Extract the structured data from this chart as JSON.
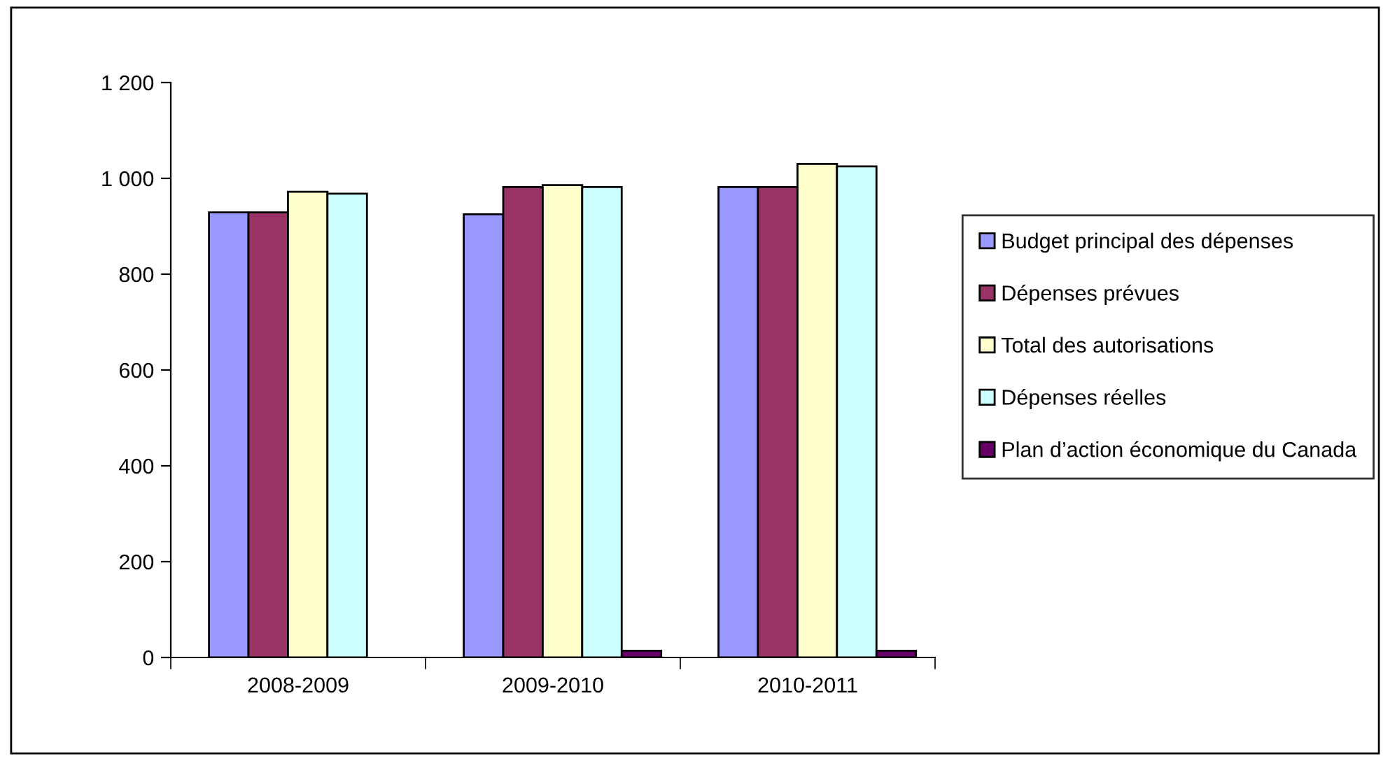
{
  "chart_data": {
    "type": "bar",
    "categories": [
      "2008-2009",
      "2009-2010",
      "2010-2011"
    ],
    "series": [
      {
        "name": "Budget principal des dépenses",
        "color": "#9999ff",
        "values": [
          929,
          925,
          982
        ]
      },
      {
        "name": "Dépenses prévues",
        "color": "#993366",
        "values": [
          929,
          982,
          982
        ]
      },
      {
        "name": "Total des autorisations",
        "color": "#ffffcc",
        "values": [
          972,
          986,
          1030
        ]
      },
      {
        "name": "Dépenses réelles",
        "color": "#ccffff",
        "values": [
          968,
          982,
          1025
        ]
      },
      {
        "name": "Plan d’action économique du Canada",
        "color": "#660066",
        "values": [
          null,
          14,
          14
        ]
      }
    ],
    "ylim": [
      0,
      1200
    ],
    "yticks": [
      0,
      200,
      400,
      600,
      800,
      {
        "value": 1000,
        "label": "1 000"
      },
      {
        "value": 1200,
        "label": "1 200"
      }
    ],
    "grid": false,
    "legend": "right"
  }
}
